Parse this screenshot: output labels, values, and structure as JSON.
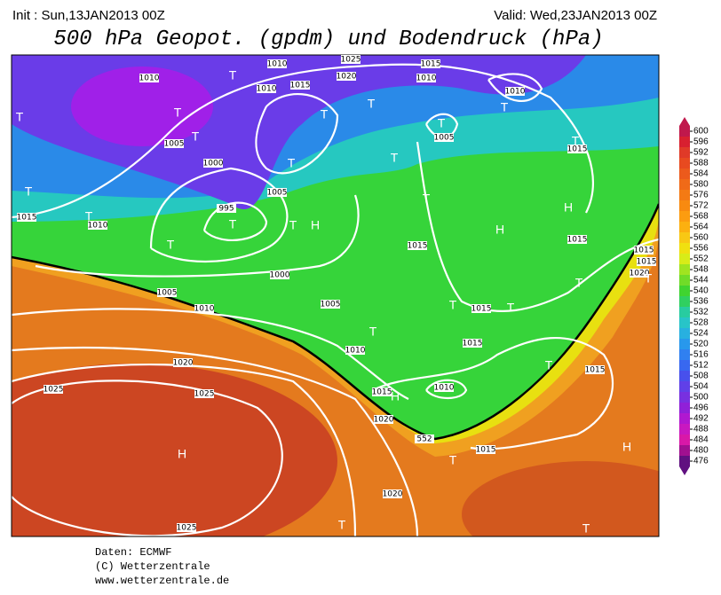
{
  "header": {
    "init": "Init : Sun,13JAN2013 00Z",
    "valid": "Valid: Wed,23JAN2013 00Z",
    "title": "500 hPa Geopot. (gpdm) und Bodendruck (hPa)"
  },
  "legend": {
    "ticks": [
      600,
      596,
      592,
      588,
      584,
      580,
      576,
      572,
      568,
      564,
      560,
      556,
      552,
      548,
      544,
      540,
      536,
      532,
      528,
      524,
      520,
      516,
      512,
      508,
      504,
      500,
      496,
      492,
      488,
      484,
      480,
      476
    ]
  },
  "map": {
    "labels": [
      "1010",
      "1025",
      "1015",
      "1020",
      "1010",
      "1010",
      "1010",
      "1010",
      "1015",
      "1005",
      "1000",
      "1005",
      "1015",
      "1015",
      "1010",
      "995",
      "1005",
      "1015",
      "1015",
      "1000",
      "1005",
      "1010",
      "1005",
      "1015",
      "1015",
      "1010",
      "1020",
      "1025",
      "1025",
      "1015",
      "1010",
      "1015",
      "1020",
      "1015",
      "1020",
      "1025",
      "1015",
      "1015",
      "1020",
      "552"
    ],
    "markers": [
      "T",
      "T",
      "T",
      "T",
      "T",
      "T",
      "T",
      "T",
      "T",
      "T",
      "T",
      "T",
      "T",
      "T",
      "T",
      "T",
      "T",
      "T",
      "T",
      "T",
      "T",
      "T",
      "T",
      "T",
      "T",
      "H",
      "H",
      "H",
      "H",
      "H",
      "H",
      "T"
    ]
  },
  "footer": {
    "lines": [
      "Daten: ECMWF",
      "(C) Wetterzentrale",
      "www.wetterzentrale.de"
    ]
  }
}
